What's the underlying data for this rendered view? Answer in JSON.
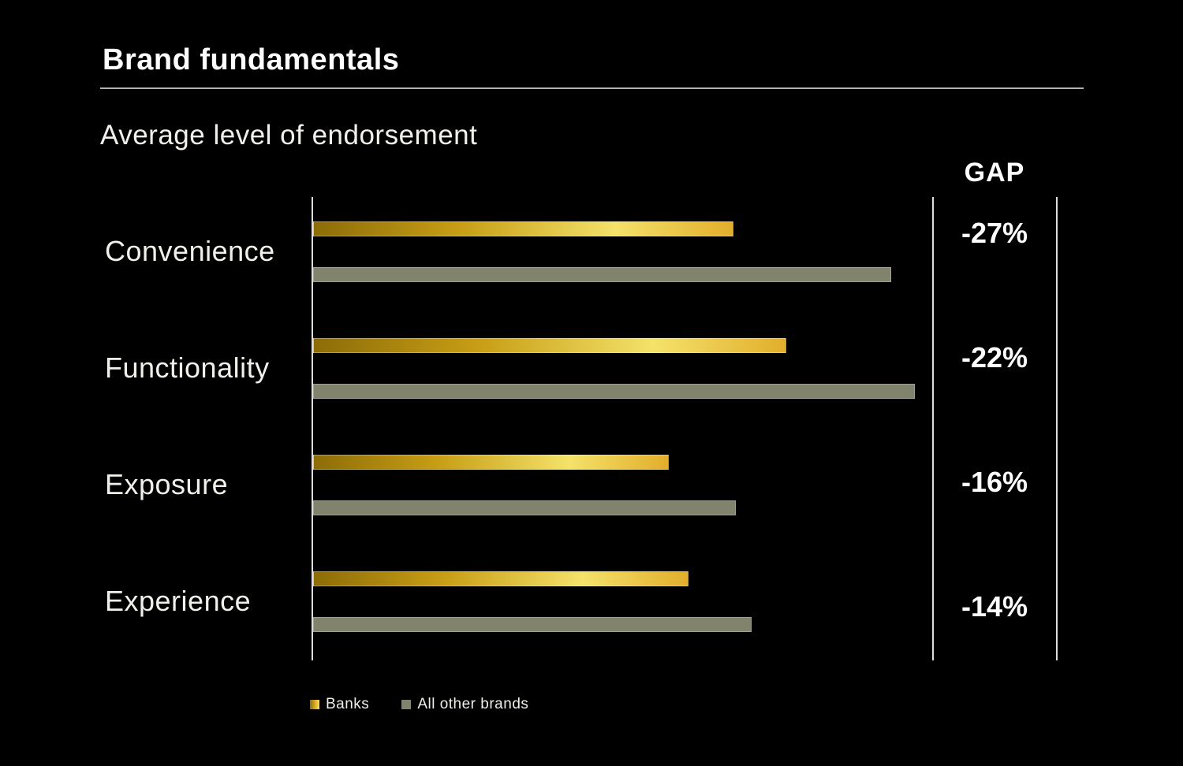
{
  "header": {
    "title": "Brand fundamentals"
  },
  "chart": {
    "subtitle": "Average level of endorsement"
  },
  "gap_column": {
    "header": "GAP",
    "values": [
      "-27%",
      "-22%",
      "-16%",
      "-14%"
    ]
  },
  "legend": {
    "items": [
      {
        "label": "Banks"
      },
      {
        "label": "All other brands"
      }
    ]
  },
  "colors": {
    "background": "#000000",
    "banks_gradient": [
      "#8d6c08",
      "#c79e15",
      "#f4e26a",
      "#e2ae2c"
    ],
    "banks_swatch": "#dfb02c",
    "other_brands_fill": "#81836d",
    "other_brands_border": "#a0a18e",
    "axis_line": "#dedede",
    "divider_line": "#b3b3b3",
    "text_primary": "#ffffff",
    "text_secondary": "#f2f0ea"
  },
  "chart_data": {
    "type": "bar",
    "orientation": "horizontal",
    "title": "Brand fundamentals",
    "subtitle": "Average level of endorsement",
    "categories": [
      "Convenience",
      "Functionality",
      "Exposure",
      "Experience"
    ],
    "series": [
      {
        "name": "Banks",
        "values": [
          53.3,
          60.0,
          45.1,
          47.6
        ]
      },
      {
        "name": "All other brands",
        "values": [
          73.3,
          76.3,
          53.6,
          55.6
        ]
      }
    ],
    "gap_labels": [
      "-27%",
      "-22%",
      "-16%",
      "-14%"
    ],
    "xlim": [
      0,
      78
    ],
    "grid": false,
    "legend_position": "bottom"
  }
}
